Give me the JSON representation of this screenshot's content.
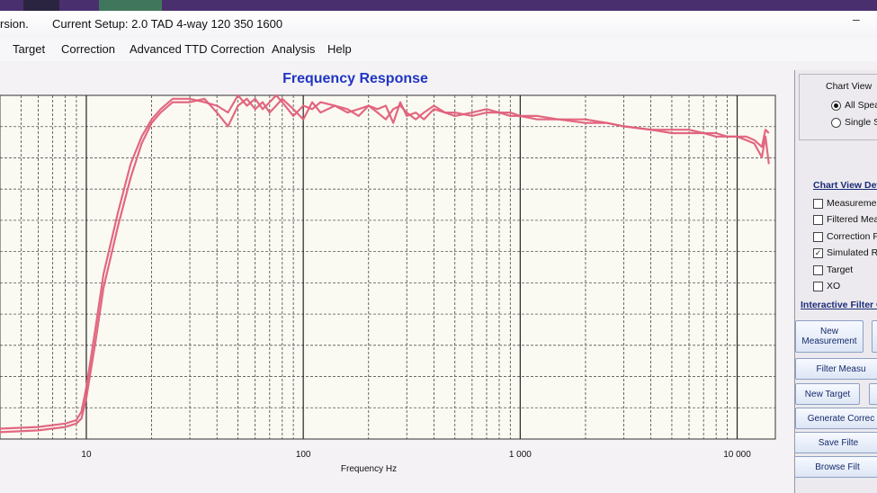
{
  "window": {
    "title_left": "rsion.",
    "title_setup": "Current Setup: 2.0 TAD 4-way 120 350 1600",
    "minimize_glyph": "–"
  },
  "menu": [
    {
      "label": "Target"
    },
    {
      "label": "Correction"
    },
    {
      "label": "Advanced TTD Correction"
    },
    {
      "label": "Analysis"
    },
    {
      "label": "Help"
    }
  ],
  "chart_data": {
    "type": "line",
    "title": "Frequency Response",
    "xlabel": "Frequency Hz",
    "ylabel": "",
    "xscale": "log",
    "xlim": [
      4,
      15000
    ],
    "ylim": [
      0,
      100
    ],
    "x_ticks": [
      {
        "value": 10,
        "label": "10"
      },
      {
        "value": 100,
        "label": "100"
      },
      {
        "value": 1000,
        "label": "1 000"
      },
      {
        "value": 10000,
        "label": "10 000"
      }
    ],
    "grid": true,
    "series": [
      {
        "color": "#e0607a",
        "x": [
          4,
          6,
          8,
          9,
          9.5,
          10,
          11,
          12,
          14,
          16,
          18,
          20,
          22,
          25,
          30,
          35,
          40,
          45,
          50,
          55,
          60,
          65,
          70,
          75,
          80,
          90,
          100,
          110,
          120,
          140,
          160,
          180,
          200,
          220,
          240,
          260,
          280,
          300,
          330,
          360,
          400,
          450,
          500,
          600,
          700,
          800,
          900,
          1000,
          1200,
          1500,
          2000,
          2500,
          3000,
          4000,
          5000,
          6000,
          7000,
          8000,
          9000,
          10000,
          11000,
          12000,
          13000,
          13500,
          14000
        ],
        "y": [
          3,
          3.5,
          4.5,
          5.5,
          8,
          15,
          32,
          48,
          66,
          80,
          88,
          93,
          96,
          99,
          99,
          98,
          97,
          95,
          100,
          97,
          99,
          96,
          98,
          100,
          98,
          94,
          97,
          96,
          98,
          97,
          95,
          96,
          97,
          95,
          93,
          96,
          97,
          95,
          93,
          95,
          97,
          95,
          94,
          95,
          96,
          95,
          95,
          94,
          94,
          93,
          93,
          92,
          91,
          90,
          90,
          90,
          89,
          89,
          88,
          88,
          88,
          87,
          85,
          90,
          89
        ]
      },
      {
        "color": "#e0607a",
        "x": [
          4,
          6,
          8,
          9,
          9.5,
          10,
          11,
          12,
          14,
          16,
          18,
          20,
          22,
          25,
          30,
          35,
          40,
          45,
          50,
          55,
          60,
          65,
          70,
          75,
          80,
          90,
          100,
          110,
          120,
          140,
          160,
          180,
          200,
          220,
          240,
          260,
          280,
          300,
          330,
          360,
          400,
          450,
          500,
          600,
          700,
          800,
          900,
          1000,
          1200,
          1500,
          2000,
          2500,
          3000,
          4000,
          5000,
          6000,
          7000,
          8000,
          9000,
          10000,
          11000,
          12000,
          13000,
          13500,
          14000
        ],
        "y": [
          2,
          2.5,
          3.5,
          4.5,
          6,
          12,
          28,
          44,
          62,
          76,
          86,
          92,
          95,
          98,
          98,
          99,
          95,
          91,
          97,
          99,
          96,
          98,
          95,
          97,
          99,
          96,
          93,
          98,
          95,
          97,
          96,
          94,
          97,
          96,
          97,
          92,
          98,
          94,
          95,
          93,
          96,
          95,
          95,
          94,
          95,
          95,
          94,
          94,
          93,
          93,
          92,
          92,
          91,
          90,
          89,
          89,
          89,
          88,
          88,
          88,
          87,
          86,
          82,
          88,
          80
        ]
      }
    ]
  },
  "side": {
    "chart_view_label": "Chart View",
    "radio_all": "All Spea",
    "radio_single": "Single S",
    "details_head": "Chart View Det",
    "checkboxes": [
      {
        "label": "Measuremen",
        "checked": false
      },
      {
        "label": "Filtered Mea",
        "checked": false
      },
      {
        "label": "Correction Fi",
        "checked": false
      },
      {
        "label": "Simulated Re",
        "checked": true
      },
      {
        "label": "Target",
        "checked": false
      },
      {
        "label": "XO",
        "checked": false
      }
    ],
    "interactive_head": "Interactive Filter C",
    "buttons": {
      "new_measurement": "New Measurement",
      "filter_measurement": "Filter Measu",
      "new_target": "New Target",
      "generate_correction": "Generate Correc",
      "save_filter": "Save Filte",
      "browse_filter": "Browse Filt"
    }
  }
}
